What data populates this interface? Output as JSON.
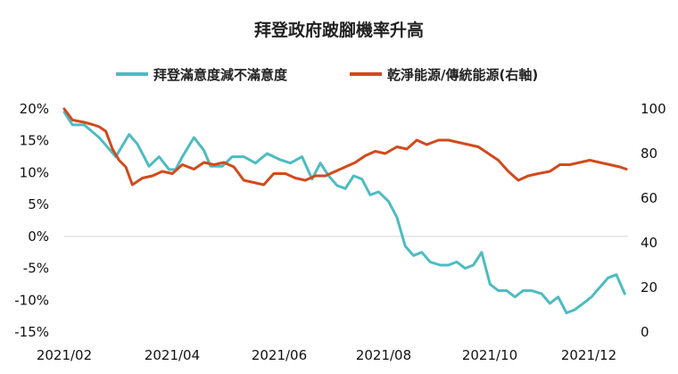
{
  "chart_data": {
    "type": "line",
    "title": "拜登政府跛腳機率升高",
    "xlabel": "",
    "ylabel": "",
    "x_ticks": [
      "2021/02",
      "2021/04",
      "2021/06",
      "2021/08",
      "2021/10",
      "2021/12"
    ],
    "y_left": {
      "ticks": [
        "20%",
        "15%",
        "10%",
        "5%",
        "0%",
        "-5%",
        "-10%",
        "-15%"
      ],
      "range": [
        -15,
        20
      ]
    },
    "y_right": {
      "ticks": [
        "100",
        "80",
        "60",
        "40",
        "20",
        "0"
      ],
      "range": [
        0,
        100
      ]
    },
    "legend_position": "top",
    "grid": false,
    "series": [
      {
        "name": "拜登滿意度減不滿意度",
        "axis": "left",
        "color": "#4dbcc2",
        "x": [
          "2021-01-20",
          "2021-01-25",
          "2021-02-01",
          "2021-02-10",
          "2021-02-20",
          "2021-02-28",
          "2021-03-05",
          "2021-03-12",
          "2021-03-18",
          "2021-03-24",
          "2021-03-28",
          "2021-04-01",
          "2021-04-08",
          "2021-04-14",
          "2021-04-18",
          "2021-04-25",
          "2021-05-01",
          "2021-05-08",
          "2021-05-15",
          "2021-05-22",
          "2021-05-30",
          "2021-06-05",
          "2021-06-12",
          "2021-06-18",
          "2021-06-23",
          "2021-06-28",
          "2021-07-03",
          "2021-07-08",
          "2021-07-13",
          "2021-07-18",
          "2021-07-23",
          "2021-07-28",
          "2021-08-03",
          "2021-08-08",
          "2021-08-13",
          "2021-08-18",
          "2021-08-23",
          "2021-08-28",
          "2021-09-03",
          "2021-09-08",
          "2021-09-13",
          "2021-09-18",
          "2021-09-23",
          "2021-09-28",
          "2021-10-03",
          "2021-10-08",
          "2021-10-13",
          "2021-10-18",
          "2021-10-23",
          "2021-10-28",
          "2021-11-03",
          "2021-11-08",
          "2021-11-13",
          "2021-11-18",
          "2021-11-23",
          "2021-11-28",
          "2021-12-03",
          "2021-12-08",
          "2021-12-13",
          "2021-12-18",
          "2021-12-23"
        ],
        "values": [
          19.5,
          17.5,
          17.5,
          15.5,
          12.5,
          16.0,
          14.5,
          11.0,
          12.5,
          10.5,
          10.5,
          12.5,
          15.5,
          13.5,
          11.0,
          11.0,
          12.5,
          12.5,
          11.5,
          13.0,
          12.0,
          11.5,
          12.5,
          9.0,
          11.5,
          9.5,
          8.0,
          7.5,
          9.5,
          9.0,
          6.5,
          7.0,
          5.5,
          3.0,
          -1.5,
          -3.0,
          -2.5,
          -4.0,
          -4.5,
          -4.5,
          -4.0,
          -5.0,
          -4.5,
          -2.5,
          -7.5,
          -8.5,
          -8.5,
          -9.5,
          -8.5,
          -8.5,
          -9.0,
          -10.5,
          -9.5,
          -12.0,
          -11.5,
          -10.5,
          -9.5,
          -8.0,
          -6.5,
          -6.0,
          -9.0
        ]
      },
      {
        "name": "乾淨能源/傳統能源(右軸)",
        "axis": "right",
        "color": "#d24a1c",
        "x": [
          "2021-01-20",
          "2021-01-25",
          "2021-02-01",
          "2021-02-06",
          "2021-02-10",
          "2021-02-14",
          "2021-02-18",
          "2021-02-22",
          "2021-02-26",
          "2021-03-02",
          "2021-03-08",
          "2021-03-14",
          "2021-03-20",
          "2021-03-26",
          "2021-04-01",
          "2021-04-08",
          "2021-04-14",
          "2021-04-20",
          "2021-04-26",
          "2021-05-02",
          "2021-05-08",
          "2021-05-14",
          "2021-05-20",
          "2021-05-26",
          "2021-06-02",
          "2021-06-08",
          "2021-06-14",
          "2021-06-20",
          "2021-06-26",
          "2021-07-02",
          "2021-07-08",
          "2021-07-14",
          "2021-07-20",
          "2021-07-26",
          "2021-08-01",
          "2021-08-08",
          "2021-08-14",
          "2021-08-20",
          "2021-08-26",
          "2021-09-02",
          "2021-09-08",
          "2021-09-14",
          "2021-09-20",
          "2021-09-26",
          "2021-10-02",
          "2021-10-08",
          "2021-10-14",
          "2021-10-20",
          "2021-10-26",
          "2021-11-01",
          "2021-11-08",
          "2021-11-14",
          "2021-11-20",
          "2021-11-26",
          "2021-12-02",
          "2021-12-08",
          "2021-12-14",
          "2021-12-20",
          "2021-12-24"
        ],
        "values": [
          100,
          95,
          94,
          93,
          92,
          90,
          82,
          77,
          74,
          66,
          69,
          70,
          72,
          71,
          75,
          73,
          76,
          75,
          76,
          74,
          68,
          67,
          66,
          71,
          71,
          69,
          68,
          70,
          70,
          72,
          74,
          76,
          79,
          81,
          80,
          83,
          82,
          86,
          84,
          86,
          86,
          85,
          84,
          83,
          80,
          77,
          72,
          68,
          70,
          71,
          72,
          75,
          75,
          76,
          77,
          76,
          75,
          74,
          73
        ]
      }
    ]
  }
}
